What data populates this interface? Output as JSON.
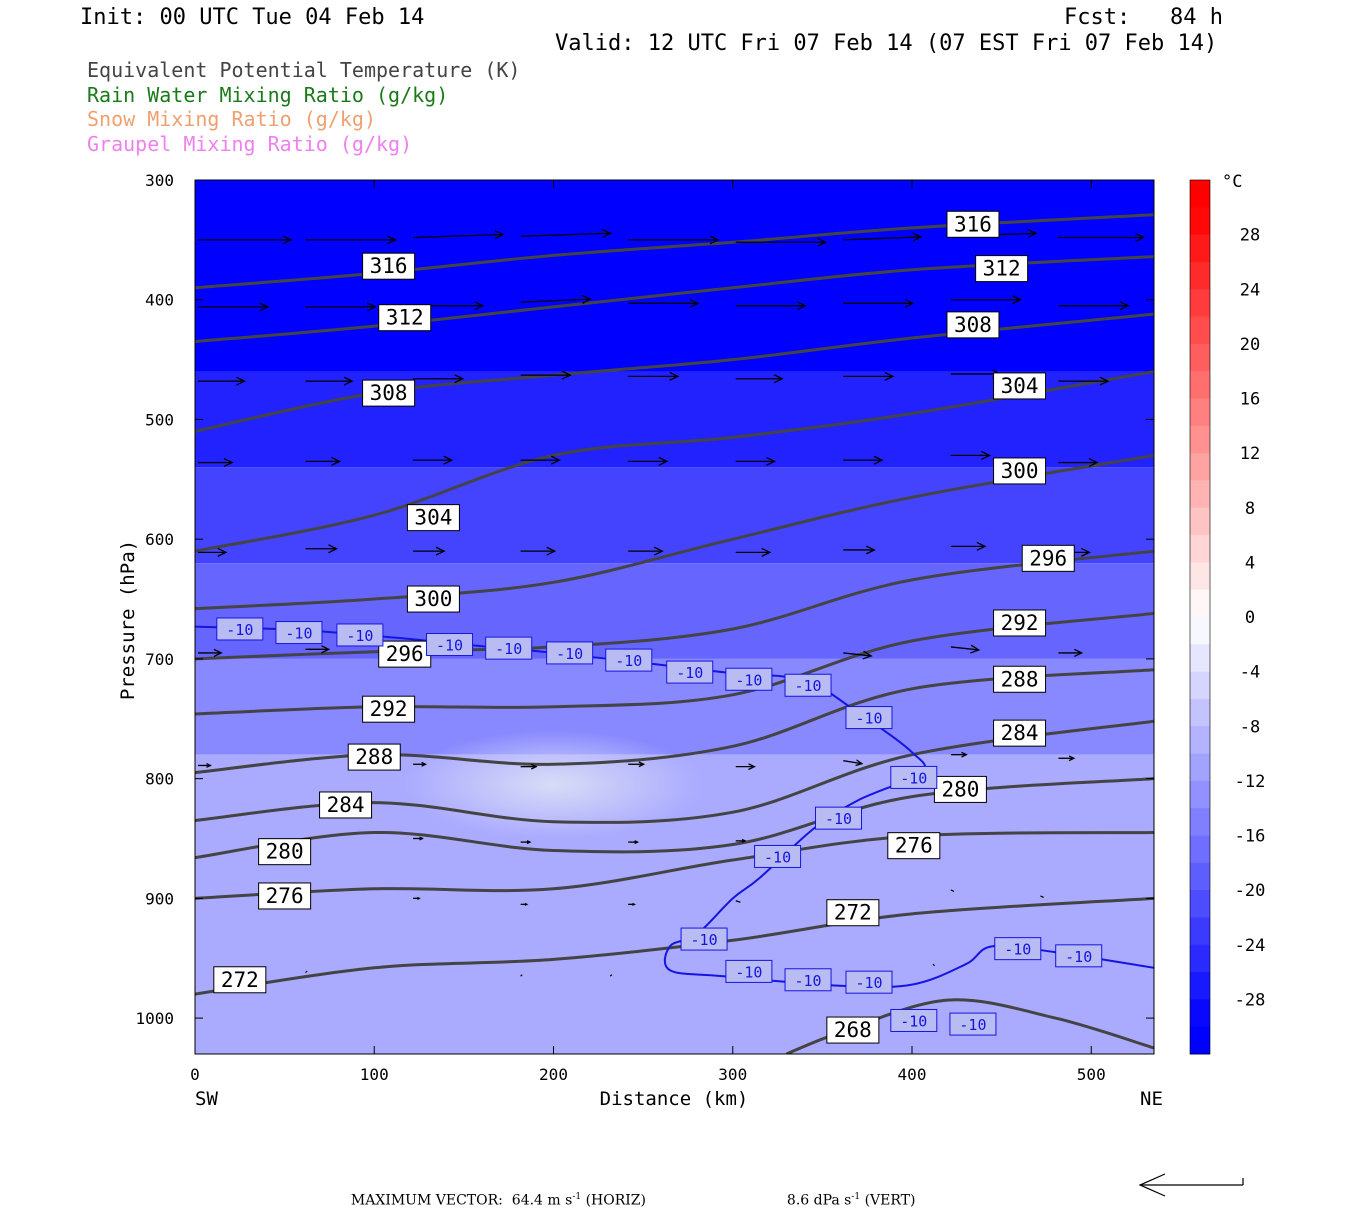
{
  "header": {
    "init": "Init: 00 UTC Tue 04 Feb 14",
    "fcst": "Fcst:   84 h",
    "valid": "Valid: 12 UTC Fri 07 Feb 14 (07 EST Fri 07 Feb 14)"
  },
  "legend": [
    {
      "label": "Equivalent Potential Temperature (K)",
      "color": "#444444"
    },
    {
      "label": "Rain Water Mixing Ratio (g/kg)",
      "color": "#1a7a1a"
    },
    {
      "label": "Snow Mixing Ratio (g/kg)",
      "color": "#f0a070"
    },
    {
      "label": "Graupel Mixing Ratio (g/kg)",
      "color": "#f080f0"
    }
  ],
  "footer": {
    "max_vector_label": "MAXIMUM VECTOR:",
    "horiz_value": "64.4 m s",
    "horiz_unit_exp": "-1",
    "horiz_suffix": " (HORIZ)",
    "vert_value": "8.6 dPa s",
    "vert_unit_exp": "-1",
    "vert_suffix": " (VERT)"
  },
  "chart_data": {
    "type": "cross-section",
    "xlabel": "Distance (km)",
    "ylabel": "Pressure (hPa)",
    "x_ticks": [
      0,
      100,
      200,
      300,
      400,
      500
    ],
    "y_ticks": [
      300,
      400,
      500,
      600,
      700,
      800,
      900,
      1000
    ],
    "xlim": [
      0,
      535
    ],
    "ylim": [
      300,
      1030
    ],
    "y_reversed": true,
    "left_end_label": "SW",
    "right_end_label": "NE",
    "colorbar": {
      "unit": "°C",
      "tick_labels": [
        "28",
        "24",
        "20",
        "16",
        "12",
        "8",
        "4",
        "0",
        "-4",
        "-8",
        "-12",
        "-16",
        "-20",
        "-24",
        "-28"
      ],
      "tick_values": [
        28,
        24,
        20,
        16,
        12,
        8,
        4,
        0,
        -4,
        -8,
        -12,
        -16,
        -20,
        -24,
        -28
      ],
      "range": [
        -32,
        32
      ],
      "step": 2
    },
    "temperature_bands": [
      {
        "p_top": 300,
        "p_bottom": 460,
        "temp": -30
      },
      {
        "p_top": 460,
        "p_bottom": 540,
        "temp": -26
      },
      {
        "p_top": 540,
        "p_bottom": 620,
        "temp": -22
      },
      {
        "p_top": 620,
        "p_bottom": 700,
        "temp": -18
      },
      {
        "p_top": 700,
        "p_bottom": 780,
        "temp": -14
      },
      {
        "p_top": 780,
        "p_bottom": 1030,
        "temp": -10
      }
    ],
    "warm_pocket": {
      "x": 200,
      "p": 805,
      "temp": -6
    },
    "theta_e_contours": [
      {
        "level": "316",
        "points": [
          [
            0,
            390
          ],
          [
            100,
            378
          ],
          [
            200,
            363
          ],
          [
            300,
            352
          ],
          [
            400,
            340
          ],
          [
            535,
            329
          ]
        ]
      },
      {
        "level": "312",
        "points": [
          [
            0,
            435
          ],
          [
            100,
            422
          ],
          [
            200,
            406
          ],
          [
            300,
            390
          ],
          [
            400,
            375
          ],
          [
            535,
            364
          ]
        ]
      },
      {
        "level": "308",
        "points": [
          [
            0,
            510
          ],
          [
            100,
            478
          ],
          [
            200,
            463
          ],
          [
            300,
            450
          ],
          [
            400,
            432
          ],
          [
            535,
            412
          ]
        ]
      },
      {
        "level": "304",
        "points": [
          [
            0,
            610
          ],
          [
            100,
            580
          ],
          [
            200,
            530
          ],
          [
            300,
            515
          ],
          [
            400,
            495
          ],
          [
            535,
            460
          ]
        ]
      },
      {
        "level": "300",
        "points": [
          [
            0,
            658
          ],
          [
            100,
            650
          ],
          [
            200,
            636
          ],
          [
            300,
            600
          ],
          [
            400,
            565
          ],
          [
            535,
            530
          ]
        ]
      },
      {
        "level": "296",
        "points": [
          [
            0,
            700
          ],
          [
            100,
            694
          ],
          [
            200,
            690
          ],
          [
            300,
            675
          ],
          [
            400,
            634
          ],
          [
            535,
            610
          ]
        ]
      },
      {
        "level": "292",
        "points": [
          [
            0,
            746
          ],
          [
            100,
            740
          ],
          [
            200,
            740
          ],
          [
            300,
            730
          ],
          [
            400,
            685
          ],
          [
            535,
            662
          ]
        ]
      },
      {
        "level": "288",
        "points": [
          [
            0,
            795
          ],
          [
            100,
            780
          ],
          [
            200,
            788
          ],
          [
            300,
            773
          ],
          [
            400,
            725
          ],
          [
            535,
            709
          ]
        ]
      },
      {
        "level": "284",
        "points": [
          [
            0,
            835
          ],
          [
            100,
            820
          ],
          [
            200,
            836
          ],
          [
            300,
            828
          ],
          [
            400,
            780
          ],
          [
            535,
            752
          ]
        ]
      },
      {
        "level": "280",
        "points": [
          [
            0,
            866
          ],
          [
            100,
            845
          ],
          [
            200,
            860
          ],
          [
            300,
            855
          ],
          [
            400,
            815
          ],
          [
            535,
            800
          ]
        ]
      },
      {
        "level": "276",
        "points": [
          [
            0,
            900
          ],
          [
            100,
            892
          ],
          [
            200,
            892
          ],
          [
            300,
            868
          ],
          [
            400,
            848
          ],
          [
            535,
            845
          ]
        ]
      },
      {
        "level": "272",
        "points": [
          [
            0,
            980
          ],
          [
            100,
            958
          ],
          [
            200,
            951
          ],
          [
            300,
            935
          ],
          [
            400,
            913
          ],
          [
            535,
            900
          ]
        ]
      },
      {
        "level": "268",
        "points": [
          [
            330,
            1030
          ],
          [
            360,
            1012
          ],
          [
            420,
            985
          ],
          [
            480,
            1000
          ],
          [
            535,
            1025
          ]
        ]
      }
    ],
    "theta_e_labels": [
      {
        "text": "316",
        "x": 108,
        "p": 372
      },
      {
        "text": "312",
        "x": 117,
        "p": 415
      },
      {
        "text": "308",
        "x": 108,
        "p": 478
      },
      {
        "text": "304",
        "x": 133,
        "p": 582
      },
      {
        "text": "300",
        "x": 133,
        "p": 650
      },
      {
        "text": "296",
        "x": 117,
        "p": 696
      },
      {
        "text": "292",
        "x": 108,
        "p": 742
      },
      {
        "text": "288",
        "x": 100,
        "p": 782
      },
      {
        "text": "284",
        "x": 84,
        "p": 822
      },
      {
        "text": "280",
        "x": 50,
        "p": 861
      },
      {
        "text": "276",
        "x": 50,
        "p": 898
      },
      {
        "text": "272",
        "x": 25,
        "p": 968
      },
      {
        "text": "268",
        "x": 367,
        "p": 1010
      },
      {
        "text": "316",
        "x": 434,
        "p": 337
      },
      {
        "text": "312",
        "x": 450,
        "p": 374
      },
      {
        "text": "308",
        "x": 434,
        "p": 421
      },
      {
        "text": "304",
        "x": 460,
        "p": 472
      },
      {
        "text": "300",
        "x": 460,
        "p": 543
      },
      {
        "text": "296",
        "x": 476,
        "p": 616
      },
      {
        "text": "292",
        "x": 460,
        "p": 670
      },
      {
        "text": "288",
        "x": 460,
        "p": 717
      },
      {
        "text": "284",
        "x": 460,
        "p": 762
      },
      {
        "text": "280",
        "x": 427,
        "p": 809
      },
      {
        "text": "276",
        "x": 401,
        "p": 856
      },
      {
        "text": "272",
        "x": 367,
        "p": 912
      }
    ],
    "minus10_isotherm": {
      "level": "-10",
      "points": [
        [
          0,
          673
        ],
        [
          60,
          676
        ],
        [
          110,
          682
        ],
        [
          150,
          688
        ],
        [
          200,
          695
        ],
        [
          260,
          705
        ],
        [
          300,
          712
        ],
        [
          340,
          718
        ],
        [
          370,
          745
        ],
        [
          400,
          778
        ],
        [
          405,
          795
        ],
        [
          370,
          818
        ],
        [
          345,
          842
        ],
        [
          315,
          883
        ],
        [
          300,
          900
        ],
        [
          280,
          930
        ],
        [
          265,
          940
        ],
        [
          265,
          960
        ],
        [
          295,
          965
        ],
        [
          360,
          973
        ],
        [
          400,
          972
        ],
        [
          430,
          955
        ],
        [
          445,
          940
        ],
        [
          480,
          945
        ],
        [
          535,
          958
        ]
      ]
    },
    "minus10_labels": [
      {
        "x": 25,
        "p": 675
      },
      {
        "x": 58,
        "p": 678
      },
      {
        "x": 92,
        "p": 680
      },
      {
        "x": 142,
        "p": 688
      },
      {
        "x": 175,
        "p": 691
      },
      {
        "x": 209,
        "p": 695
      },
      {
        "x": 242,
        "p": 701
      },
      {
        "x": 276,
        "p": 711
      },
      {
        "x": 309,
        "p": 717
      },
      {
        "x": 342,
        "p": 722
      },
      {
        "x": 376,
        "p": 749
      },
      {
        "x": 401,
        "p": 799
      },
      {
        "x": 359,
        "p": 833
      },
      {
        "x": 325,
        "p": 865
      },
      {
        "x": 284,
        "p": 934
      },
      {
        "x": 309,
        "p": 961
      },
      {
        "x": 342,
        "p": 968
      },
      {
        "x": 376,
        "p": 970
      },
      {
        "x": 401,
        "p": 1002
      },
      {
        "x": 434,
        "p": 1005
      },
      {
        "x": 459,
        "p": 942
      },
      {
        "x": 493,
        "p": 948
      }
    ],
    "wind_vectors": [
      {
        "x": 0,
        "p": 350,
        "u": 60,
        "w": 0
      },
      {
        "x": 60,
        "p": 350,
        "u": 58,
        "w": 0
      },
      {
        "x": 120,
        "p": 348,
        "u": 58,
        "w": 2
      },
      {
        "x": 180,
        "p": 347,
        "u": 58,
        "w": 2
      },
      {
        "x": 240,
        "p": 350,
        "u": 58,
        "w": 0
      },
      {
        "x": 300,
        "p": 352,
        "u": 58,
        "w": 0
      },
      {
        "x": 360,
        "p": 350,
        "u": 50,
        "w": 2
      },
      {
        "x": 420,
        "p": 347,
        "u": 55,
        "w": 2
      },
      {
        "x": 480,
        "p": 348,
        "u": 55,
        "w": 0
      },
      {
        "x": 0,
        "p": 406,
        "u": 45,
        "w": 0
      },
      {
        "x": 60,
        "p": 406,
        "u": 45,
        "w": 0
      },
      {
        "x": 120,
        "p": 405,
        "u": 45,
        "w": 0
      },
      {
        "x": 180,
        "p": 402,
        "u": 45,
        "w": 2
      },
      {
        "x": 240,
        "p": 403,
        "u": 45,
        "w": 0
      },
      {
        "x": 300,
        "p": 405,
        "u": 45,
        "w": 0
      },
      {
        "x": 360,
        "p": 403,
        "u": 45,
        "w": 0
      },
      {
        "x": 420,
        "p": 400,
        "u": 45,
        "w": 0
      },
      {
        "x": 480,
        "p": 405,
        "u": 45,
        "w": 0
      },
      {
        "x": 0,
        "p": 468,
        "u": 30,
        "w": 0
      },
      {
        "x": 60,
        "p": 468,
        "u": 30,
        "w": 0
      },
      {
        "x": 120,
        "p": 466,
        "u": 32,
        "w": 0
      },
      {
        "x": 180,
        "p": 463,
        "u": 32,
        "w": 0
      },
      {
        "x": 240,
        "p": 464,
        "u": 32,
        "w": 0
      },
      {
        "x": 300,
        "p": 466,
        "u": 30,
        "w": 0
      },
      {
        "x": 360,
        "p": 464,
        "u": 32,
        "w": 0
      },
      {
        "x": 420,
        "p": 462,
        "u": 32,
        "w": 0
      },
      {
        "x": 480,
        "p": 468,
        "u": 32,
        "w": 0
      },
      {
        "x": 0,
        "p": 536,
        "u": 22,
        "w": 0
      },
      {
        "x": 60,
        "p": 535,
        "u": 22,
        "w": 0
      },
      {
        "x": 120,
        "p": 534,
        "u": 25,
        "w": 0
      },
      {
        "x": 180,
        "p": 534,
        "u": 25,
        "w": 0
      },
      {
        "x": 240,
        "p": 535,
        "u": 25,
        "w": 0
      },
      {
        "x": 300,
        "p": 535,
        "u": 25,
        "w": 0
      },
      {
        "x": 360,
        "p": 534,
        "u": 25,
        "w": 0
      },
      {
        "x": 420,
        "p": 530,
        "u": 25,
        "w": 0
      },
      {
        "x": 480,
        "p": 536,
        "u": 25,
        "w": 0
      },
      {
        "x": 0,
        "p": 611,
        "u": 18,
        "w": 0
      },
      {
        "x": 60,
        "p": 608,
        "u": 20,
        "w": 0
      },
      {
        "x": 120,
        "p": 610,
        "u": 20,
        "w": 0
      },
      {
        "x": 180,
        "p": 610,
        "u": 22,
        "w": 0
      },
      {
        "x": 240,
        "p": 610,
        "u": 22,
        "w": 0
      },
      {
        "x": 300,
        "p": 611,
        "u": 22,
        "w": 0
      },
      {
        "x": 360,
        "p": 609,
        "u": 20,
        "w": 0
      },
      {
        "x": 420,
        "p": 606,
        "u": 22,
        "w": 0
      },
      {
        "x": 480,
        "p": 611,
        "u": 20,
        "w": 0
      },
      {
        "x": 0,
        "p": 695,
        "u": 15,
        "w": 0
      },
      {
        "x": 60,
        "p": 692,
        "u": 15,
        "w": 0
      },
      {
        "x": 120,
        "p": 693,
        "u": 15,
        "w": 0
      },
      {
        "x": 360,
        "p": 695,
        "u": 18,
        "w": -2
      },
      {
        "x": 420,
        "p": 690,
        "u": 18,
        "w": -2
      },
      {
        "x": 480,
        "p": 695,
        "u": 15,
        "w": 0
      },
      {
        "x": 0,
        "p": 789,
        "u": 8,
        "w": 0
      },
      {
        "x": 120,
        "p": 788,
        "u": 8,
        "w": 0
      },
      {
        "x": 180,
        "p": 790,
        "u": 10,
        "w": 0
      },
      {
        "x": 240,
        "p": 788,
        "u": 10,
        "w": 0
      },
      {
        "x": 300,
        "p": 790,
        "u": 12,
        "w": 0
      },
      {
        "x": 360,
        "p": 785,
        "u": 12,
        "w": -2
      },
      {
        "x": 420,
        "p": 780,
        "u": 10,
        "w": 0
      },
      {
        "x": 480,
        "p": 783,
        "u": 10,
        "w": 0
      },
      {
        "x": 120,
        "p": 850,
        "u": 6,
        "w": 0
      },
      {
        "x": 180,
        "p": 853,
        "u": 6,
        "w": 0
      },
      {
        "x": 240,
        "p": 853,
        "u": 6,
        "w": 0
      },
      {
        "x": 300,
        "p": 852,
        "u": 6,
        "w": 0
      },
      {
        "x": 120,
        "p": 900,
        "u": 4,
        "w": 0
      },
      {
        "x": 180,
        "p": 905,
        "u": 4,
        "w": 0
      },
      {
        "x": 240,
        "p": 905,
        "u": 4,
        "w": 0
      },
      {
        "x": 300,
        "p": 902,
        "u": 3,
        "w": -1
      },
      {
        "x": 420,
        "p": 893,
        "u": 2,
        "w": -1
      },
      {
        "x": 470,
        "p": 898,
        "u": 2,
        "w": -1
      },
      {
        "x": 60,
        "p": 962,
        "u": 1,
        "w": 1
      },
      {
        "x": 180,
        "p": 965,
        "u": 1,
        "w": 1
      },
      {
        "x": 230,
        "p": 965,
        "u": 1,
        "w": 1
      },
      {
        "x": 410,
        "p": 955,
        "u": 1,
        "w": -1
      }
    ]
  }
}
